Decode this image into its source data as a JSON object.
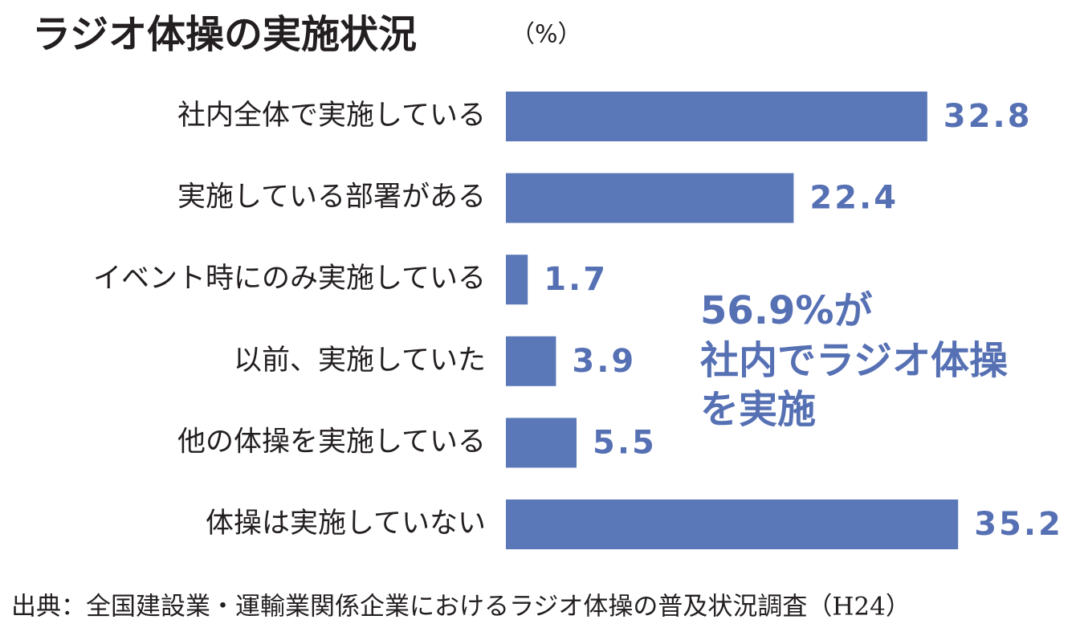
{
  "chart_data": {
    "type": "bar",
    "orientation": "horizontal",
    "title": "ラジオ体操の実施状況",
    "unit": "（%）",
    "categories": [
      "社内全体で実施している",
      "実施している部署がある",
      "イベント時にのみ実施している",
      "以前、実施していた",
      "他の体操を実施している",
      "体操は実施していない"
    ],
    "values": [
      32.8,
      22.4,
      1.7,
      3.9,
      5.5,
      35.2
    ],
    "color": "#5a78b8",
    "annotation": [
      "56.9%が",
      "社内でラジオ体操",
      "を実施"
    ],
    "source": "出典：全国建設業・運輸業関係企業におけるラジオ体操の普及状況調査（H24）"
  }
}
